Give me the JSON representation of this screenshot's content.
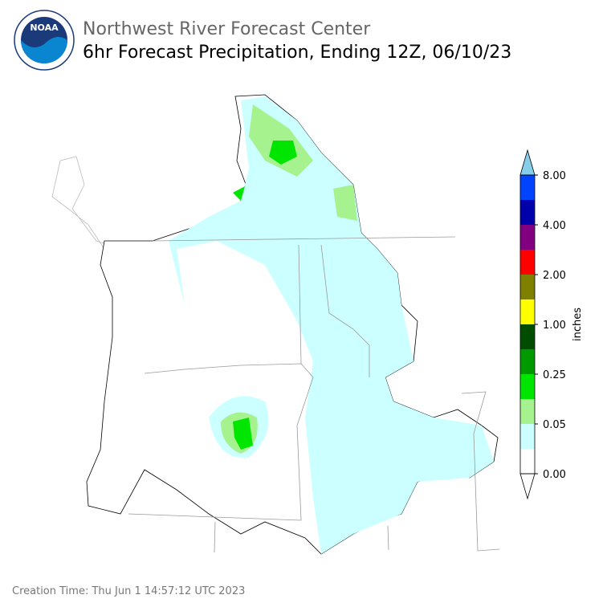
{
  "header": {
    "logo_text": "NOAA",
    "title": "Northwest River Forecast Center",
    "subtitle": "6hr Forecast Precipitation, Ending 12Z, 06/10/23"
  },
  "colorbar": {
    "label": "inches",
    "tick_labels": [
      "0.00",
      "0.05",
      "0.25",
      "1.00",
      "2.00",
      "4.00",
      "8.00"
    ],
    "colors": [
      "#ffffff",
      "#ccffff",
      "#a6f28f",
      "#00e600",
      "#009900",
      "#004d00",
      "#ffff00",
      "#808000",
      "#ff0000",
      "#800080",
      "#0000aa",
      "#0044ff"
    ],
    "under_color": "#ffffff",
    "over_color": "#87ceeb"
  },
  "footer": {
    "creation_time": "Creation Time: Thu Jun 1 14:57:12 UTC 2023"
  }
}
